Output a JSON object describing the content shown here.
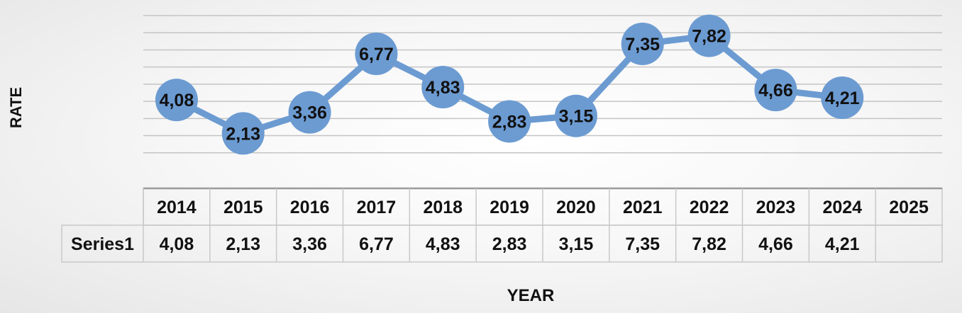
{
  "chart_data": {
    "type": "line",
    "categories": [
      "2014",
      "2015",
      "2016",
      "2017",
      "2018",
      "2019",
      "2020",
      "2021",
      "2022",
      "2023",
      "2024",
      "2025"
    ],
    "series": [
      {
        "name": "Series1",
        "values": [
          4.08,
          2.13,
          3.36,
          6.77,
          4.83,
          2.83,
          3.15,
          7.35,
          7.82,
          4.66,
          4.21,
          null
        ],
        "labels": [
          "4,08",
          "2,13",
          "3,36",
          "6,77",
          "4,83",
          "2,83",
          "3,15",
          "7,35",
          "7,82",
          "4,66",
          "4,21",
          ""
        ]
      }
    ],
    "ylabel": "RATE",
    "xlabel": "YEAR",
    "ylim": [
      0,
      9
    ],
    "grid": true,
    "data_table": true,
    "colors": {
      "line": "#6c9bd2",
      "marker": "#6c9bd2",
      "grid": "#c4c4c4"
    }
  }
}
